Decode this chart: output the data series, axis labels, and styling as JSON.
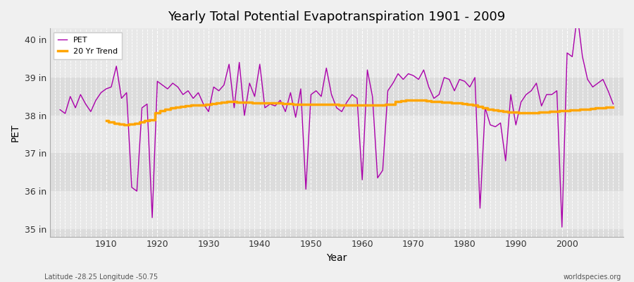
{
  "title": "Yearly Total Potential Evapotranspiration 1901 - 2009",
  "ylabel": "PET",
  "xlabel": "Year",
  "footer_left": "Latitude -28.25 Longitude -50.75",
  "footer_right": "worldspecies.org",
  "bg_color": "#f0f0f0",
  "plot_bg_color": "#f0f0f0",
  "pet_color": "#aa00aa",
  "trend_color": "#ffa500",
  "ylim": [
    34.8,
    40.3
  ],
  "yticks": [
    35,
    36,
    37,
    38,
    39,
    40
  ],
  "ytick_labels": [
    "35 in",
    "36 in",
    "37 in",
    "38 in",
    "39 in",
    "40 in"
  ],
  "xlim": [
    1899,
    2011
  ],
  "xticks": [
    1910,
    1920,
    1930,
    1940,
    1950,
    1960,
    1970,
    1980,
    1990,
    2000
  ],
  "years": [
    1901,
    1902,
    1903,
    1904,
    1905,
    1906,
    1907,
    1908,
    1909,
    1910,
    1911,
    1912,
    1913,
    1914,
    1915,
    1916,
    1917,
    1918,
    1919,
    1920,
    1921,
    1922,
    1923,
    1924,
    1925,
    1926,
    1927,
    1928,
    1929,
    1930,
    1931,
    1932,
    1933,
    1934,
    1935,
    1936,
    1937,
    1938,
    1939,
    1940,
    1941,
    1942,
    1943,
    1944,
    1945,
    1946,
    1947,
    1948,
    1949,
    1950,
    1951,
    1952,
    1953,
    1954,
    1955,
    1956,
    1957,
    1958,
    1959,
    1960,
    1961,
    1962,
    1963,
    1964,
    1965,
    1966,
    1967,
    1968,
    1969,
    1970,
    1971,
    1972,
    1973,
    1974,
    1975,
    1976,
    1977,
    1978,
    1979,
    1980,
    1981,
    1982,
    1983,
    1984,
    1985,
    1986,
    1987,
    1988,
    1989,
    1990,
    1991,
    1992,
    1993,
    1994,
    1995,
    1996,
    1997,
    1998,
    1999,
    2000,
    2001,
    2002,
    2003,
    2004,
    2005,
    2006,
    2007,
    2008,
    2009
  ],
  "pet_values": [
    38.15,
    38.05,
    38.5,
    38.2,
    38.55,
    38.3,
    38.1,
    38.4,
    38.6,
    38.7,
    38.75,
    39.3,
    38.45,
    38.6,
    36.1,
    36.0,
    38.2,
    38.3,
    35.3,
    38.9,
    38.8,
    38.7,
    38.85,
    38.75,
    38.55,
    38.65,
    38.45,
    38.6,
    38.3,
    38.1,
    38.75,
    38.65,
    38.8,
    39.35,
    38.2,
    39.4,
    38.0,
    38.85,
    38.5,
    39.35,
    38.2,
    38.3,
    38.25,
    38.4,
    38.1,
    38.6,
    37.95,
    38.7,
    36.05,
    38.55,
    38.65,
    38.5,
    39.25,
    38.55,
    38.2,
    38.1,
    38.35,
    38.55,
    38.45,
    36.3,
    39.2,
    38.5,
    36.35,
    36.55,
    38.65,
    38.85,
    39.1,
    38.95,
    39.1,
    39.05,
    38.95,
    39.2,
    38.75,
    38.45,
    38.55,
    39.0,
    38.95,
    38.65,
    38.95,
    38.9,
    38.75,
    39.0,
    35.55,
    38.2,
    37.75,
    37.7,
    37.8,
    36.8,
    38.55,
    37.75,
    38.35,
    38.55,
    38.65,
    38.85,
    38.25,
    38.55,
    38.55,
    38.65,
    35.05,
    39.65,
    39.55,
    40.65,
    39.55,
    38.95,
    38.75,
    38.85,
    38.95,
    38.65,
    38.3
  ],
  "trend_values": [
    null,
    null,
    null,
    null,
    null,
    null,
    null,
    null,
    null,
    37.87,
    37.83,
    37.79,
    37.77,
    37.76,
    37.77,
    37.79,
    37.82,
    37.86,
    37.89,
    38.06,
    38.12,
    38.17,
    38.2,
    38.22,
    38.24,
    38.26,
    38.27,
    38.28,
    38.28,
    38.29,
    38.31,
    38.33,
    38.35,
    38.36,
    38.36,
    38.35,
    38.34,
    38.34,
    38.33,
    38.33,
    38.33,
    38.32,
    38.32,
    38.32,
    38.31,
    38.31,
    38.3,
    38.3,
    38.3,
    38.3,
    38.3,
    38.3,
    38.29,
    38.29,
    38.29,
    38.28,
    38.28,
    38.27,
    38.27,
    38.27,
    38.27,
    38.27,
    38.28,
    38.28,
    38.29,
    38.3,
    38.36,
    38.38,
    38.4,
    38.41,
    38.41,
    38.4,
    38.39,
    38.37,
    38.36,
    38.34,
    38.34,
    38.32,
    38.32,
    38.31,
    38.3,
    38.28,
    38.23,
    38.19,
    38.16,
    38.14,
    38.12,
    38.11,
    38.09,
    38.08,
    38.07,
    38.06,
    38.06,
    38.07,
    38.08,
    38.09,
    38.1,
    38.11,
    38.12,
    38.13,
    38.14,
    38.15,
    38.16,
    38.17,
    38.18,
    38.19,
    38.2,
    38.21,
    38.22
  ]
}
